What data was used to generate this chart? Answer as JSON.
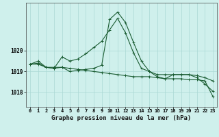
{
  "title": "Graphe pression niveau de la mer (hPa)",
  "background_color": "#cff0ec",
  "grid_color": "#aad8d4",
  "line_color": "#1a5c32",
  "x_labels": [
    "0",
    "1",
    "2",
    "3",
    "4",
    "5",
    "6",
    "7",
    "8",
    "9",
    "10",
    "11",
    "12",
    "13",
    "14",
    "15",
    "16",
    "17",
    "18",
    "19",
    "20",
    "21",
    "22",
    "23"
  ],
  "ylim": [
    1017.3,
    1022.3
  ],
  "yticks": [
    1018,
    1019,
    1020
  ],
  "series": [
    [
      1019.35,
      1019.35,
      1019.2,
      1019.2,
      1019.2,
      1019.15,
      1019.1,
      1019.05,
      1019.0,
      1018.95,
      1018.9,
      1018.85,
      1018.8,
      1018.75,
      1018.75,
      1018.75,
      1018.7,
      1018.65,
      1018.65,
      1018.65,
      1018.6,
      1018.6,
      1018.55,
      1017.8
    ],
    [
      1019.35,
      1019.5,
      1019.2,
      1019.15,
      1019.7,
      1019.5,
      1019.6,
      1019.85,
      1020.15,
      1020.45,
      1021.0,
      1021.55,
      1020.85,
      1019.9,
      1019.15,
      1019.0,
      1018.85,
      1018.85,
      1018.85,
      1018.85,
      1018.85,
      1018.8,
      1018.7,
      1018.55
    ],
    [
      1019.35,
      1019.4,
      1019.2,
      1019.15,
      1019.2,
      1019.0,
      1019.05,
      1019.1,
      1019.15,
      1019.3,
      1021.5,
      1021.85,
      1021.35,
      1020.4,
      1019.5,
      1019.0,
      1018.75,
      1018.65,
      1018.85,
      1018.85,
      1018.85,
      1018.7,
      1018.4,
      1018.05
    ]
  ],
  "marker": "+",
  "markersize": 3,
  "linewidth": 0.8,
  "title_fontsize": 6.5,
  "tick_fontsize": 5,
  "figsize": [
    3.2,
    2.0
  ],
  "dpi": 100
}
